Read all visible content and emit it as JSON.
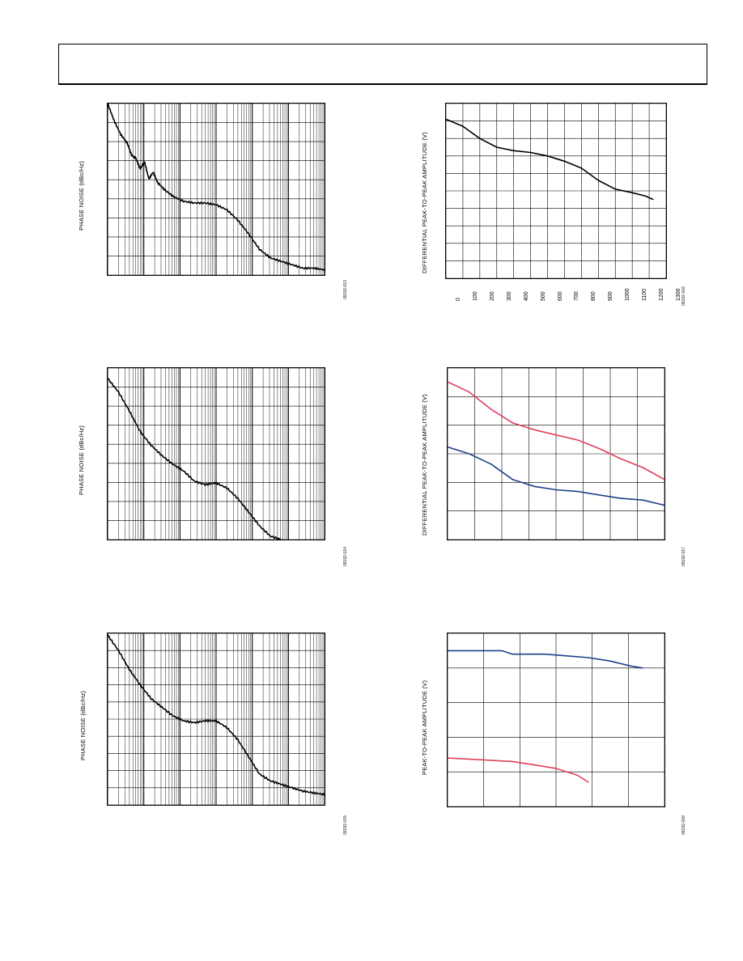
{
  "header": {
    "title": ""
  },
  "colors": {
    "axes": "#000000",
    "trace": "#000000",
    "red": "#e0405a",
    "blue": "#1f3f8a"
  },
  "chart_data": [
    {
      "id": "c1",
      "type": "line",
      "xscale": "log",
      "ylabel": "PHASE NOISE (dBc/Hz)",
      "figure_id": "09192-013",
      "xdomain": [
        0,
        1
      ],
      "ylim": [
        0,
        1
      ],
      "series": [
        {
          "color": "#000000",
          "points": [
            [
              0,
              1.0
            ],
            [
              0.03,
              0.9
            ],
            [
              0.06,
              0.82
            ],
            [
              0.09,
              0.77
            ],
            [
              0.11,
              0.7
            ],
            [
              0.13,
              0.68
            ],
            [
              0.15,
              0.62
            ],
            [
              0.17,
              0.66
            ],
            [
              0.19,
              0.56
            ],
            [
              0.21,
              0.6
            ],
            [
              0.23,
              0.54
            ],
            [
              0.26,
              0.5
            ],
            [
              0.3,
              0.46
            ],
            [
              0.35,
              0.43
            ],
            [
              0.4,
              0.42
            ],
            [
              0.45,
              0.42
            ],
            [
              0.5,
              0.41
            ],
            [
              0.55,
              0.38
            ],
            [
              0.6,
              0.32
            ],
            [
              0.65,
              0.24
            ],
            [
              0.7,
              0.15
            ],
            [
              0.75,
              0.1
            ],
            [
              0.8,
              0.08
            ],
            [
              0.85,
              0.06
            ],
            [
              0.9,
              0.04
            ],
            [
              0.95,
              0.04
            ],
            [
              1.0,
              0.03
            ]
          ]
        }
      ]
    },
    {
      "id": "c2",
      "type": "line",
      "ylabel": "DIFFERENTIAL PEAK-TO-PEAK AMPLITUDE (V)",
      "figure_id": "09192-016",
      "xlim": [
        0,
        1300
      ],
      "ylim": [
        0,
        1
      ],
      "xticks": [
        "0",
        "100",
        "200",
        "300",
        "400",
        "500",
        "600",
        "700",
        "800",
        "900",
        "1000",
        "1100",
        "1200",
        "1300"
      ],
      "series": [
        {
          "color": "#000000",
          "points": [
            [
              0,
              0.91
            ],
            [
              100,
              0.87
            ],
            [
              200,
              0.8
            ],
            [
              300,
              0.75
            ],
            [
              400,
              0.73
            ],
            [
              500,
              0.72
            ],
            [
              600,
              0.7
            ],
            [
              700,
              0.67
            ],
            [
              800,
              0.63
            ],
            [
              900,
              0.56
            ],
            [
              1000,
              0.51
            ],
            [
              1100,
              0.49
            ],
            [
              1180,
              0.47
            ],
            [
              1225,
              0.45
            ]
          ]
        }
      ]
    },
    {
      "id": "c3",
      "type": "line",
      "xscale": "log",
      "ylabel": "PHASE NOISE (dBc/Hz)",
      "figure_id": "09192-014",
      "xdomain": [
        0,
        1
      ],
      "ylim": [
        0,
        1
      ],
      "series": [
        {
          "color": "#000000",
          "points": [
            [
              0,
              0.94
            ],
            [
              0.05,
              0.86
            ],
            [
              0.1,
              0.75
            ],
            [
              0.15,
              0.63
            ],
            [
              0.2,
              0.55
            ],
            [
              0.25,
              0.49
            ],
            [
              0.3,
              0.44
            ],
            [
              0.35,
              0.4
            ],
            [
              0.4,
              0.34
            ],
            [
              0.45,
              0.32
            ],
            [
              0.5,
              0.33
            ],
            [
              0.55,
              0.3
            ],
            [
              0.6,
              0.24
            ],
            [
              0.65,
              0.16
            ],
            [
              0.7,
              0.08
            ],
            [
              0.75,
              0.02
            ],
            [
              0.8,
              0.0
            ]
          ]
        }
      ]
    },
    {
      "id": "c4",
      "type": "line",
      "ylabel": "DIFFERENTIAL PEAK-TO-PEAK AMPLITUDE (V)",
      "figure_id": "09192-017",
      "xdomain": [
        0,
        1
      ],
      "ylim": [
        0,
        1
      ],
      "series": [
        {
          "color": "#e0405a",
          "points": [
            [
              0,
              0.92
            ],
            [
              0.1,
              0.86
            ],
            [
              0.2,
              0.76
            ],
            [
              0.3,
              0.68
            ],
            [
              0.4,
              0.64
            ],
            [
              0.5,
              0.61
            ],
            [
              0.6,
              0.58
            ],
            [
              0.7,
              0.53
            ],
            [
              0.8,
              0.47
            ],
            [
              0.9,
              0.42
            ],
            [
              1.0,
              0.35
            ]
          ]
        },
        {
          "color": "#1f3f8a",
          "points": [
            [
              0,
              0.54
            ],
            [
              0.1,
              0.5
            ],
            [
              0.2,
              0.44
            ],
            [
              0.3,
              0.35
            ],
            [
              0.4,
              0.31
            ],
            [
              0.5,
              0.29
            ],
            [
              0.6,
              0.28
            ],
            [
              0.7,
              0.26
            ],
            [
              0.8,
              0.24
            ],
            [
              0.9,
              0.23
            ],
            [
              1.0,
              0.2
            ]
          ]
        }
      ]
    },
    {
      "id": "c5",
      "type": "line",
      "xscale": "log",
      "ylabel": "PHASE NOISE (dBc/Hz)",
      "figure_id": "09192-015",
      "xdomain": [
        0,
        1
      ],
      "ylim": [
        0,
        1
      ],
      "series": [
        {
          "color": "#000000",
          "points": [
            [
              0,
              0.99
            ],
            [
              0.05,
              0.9
            ],
            [
              0.1,
              0.79
            ],
            [
              0.15,
              0.7
            ],
            [
              0.2,
              0.62
            ],
            [
              0.25,
              0.57
            ],
            [
              0.3,
              0.52
            ],
            [
              0.35,
              0.49
            ],
            [
              0.4,
              0.48
            ],
            [
              0.45,
              0.49
            ],
            [
              0.5,
              0.49
            ],
            [
              0.55,
              0.45
            ],
            [
              0.6,
              0.38
            ],
            [
              0.65,
              0.28
            ],
            [
              0.7,
              0.18
            ],
            [
              0.75,
              0.14
            ],
            [
              0.8,
              0.12
            ],
            [
              0.85,
              0.1
            ],
            [
              0.9,
              0.08
            ],
            [
              0.95,
              0.07
            ],
            [
              1.0,
              0.06
            ]
          ]
        }
      ]
    },
    {
      "id": "c6",
      "type": "line",
      "ylabel": "PEAK-TO-PEAK AMPLITUDE (V)",
      "figure_id": "09192-018",
      "xdomain": [
        0,
        1
      ],
      "ylim": [
        0,
        1
      ],
      "series": [
        {
          "color": "#1f3f8a",
          "points": [
            [
              0,
              0.9
            ],
            [
              0.25,
              0.9
            ],
            [
              0.3,
              0.88
            ],
            [
              0.45,
              0.88
            ],
            [
              0.55,
              0.87
            ],
            [
              0.65,
              0.86
            ],
            [
              0.75,
              0.84
            ],
            [
              0.85,
              0.81
            ],
            [
              0.9,
              0.8
            ]
          ]
        },
        {
          "color": "#e0405a",
          "points": [
            [
              0,
              0.28
            ],
            [
              0.15,
              0.27
            ],
            [
              0.3,
              0.26
            ],
            [
              0.4,
              0.24
            ],
            [
              0.5,
              0.22
            ],
            [
              0.6,
              0.18
            ],
            [
              0.65,
              0.14
            ]
          ]
        }
      ]
    }
  ]
}
